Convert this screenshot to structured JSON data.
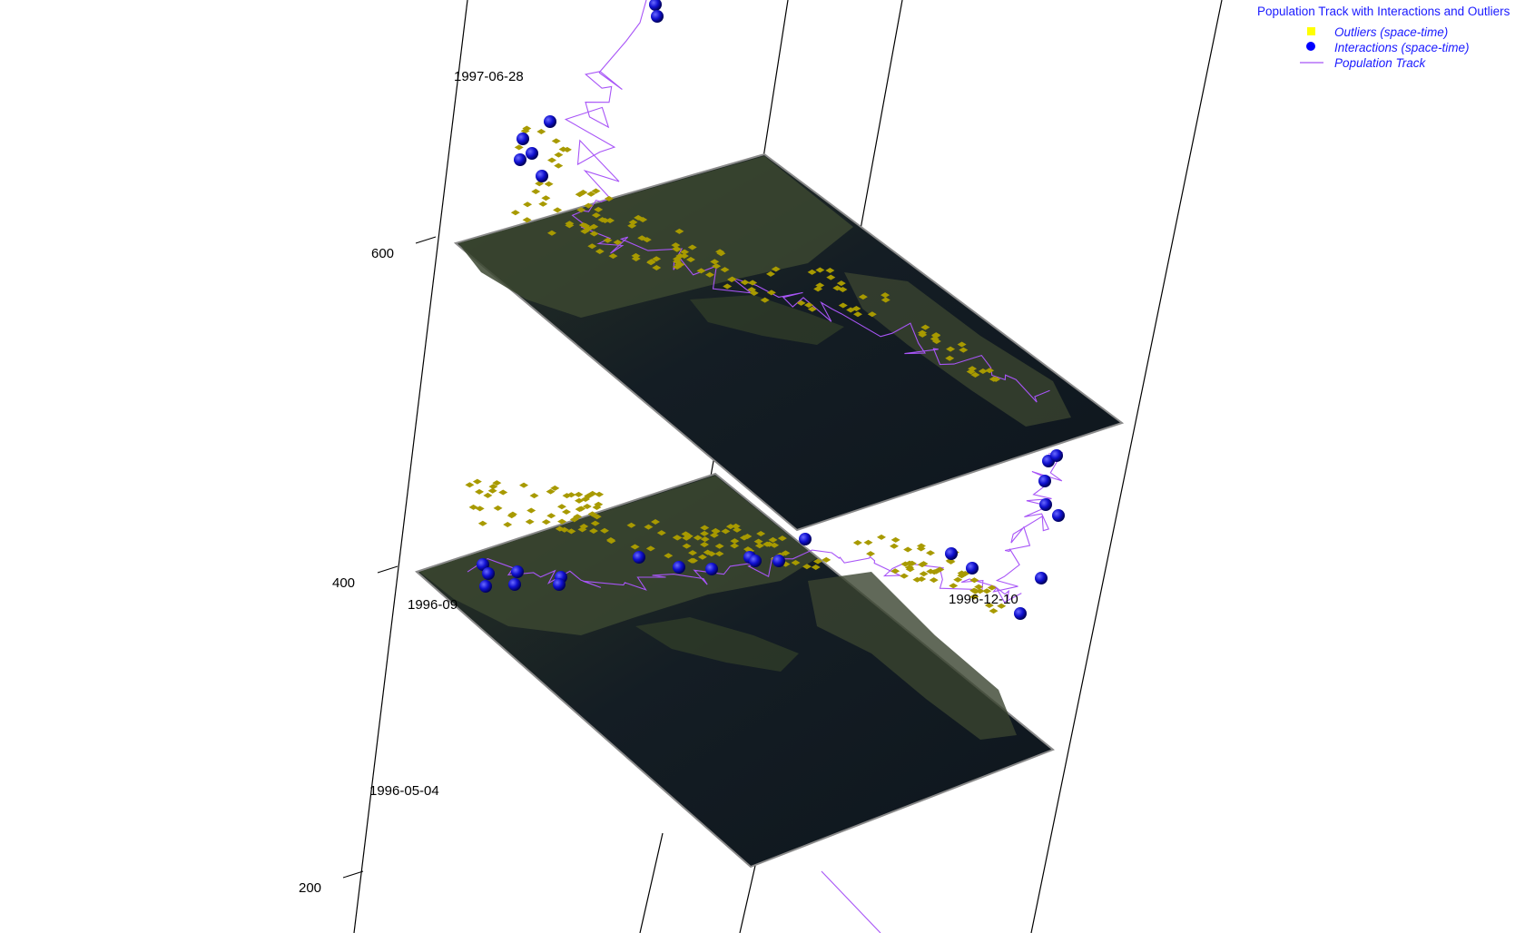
{
  "chart_data": {
    "type": "scatter",
    "title": "Population Track with Interactions and Outliers",
    "legend": {
      "placement": "top-right",
      "items": [
        {
          "label": "Outliers (space-time)",
          "symbol": "square",
          "color": "#ffff00"
        },
        {
          "label": "Interactions (space-time)",
          "symbol": "circle",
          "color": "#0000ff"
        },
        {
          "label": "Population Track",
          "symbol": "line",
          "color": "#a855f7"
        }
      ]
    },
    "z_axis": {
      "ticks": [
        "200",
        "400",
        "600"
      ]
    },
    "date_labels": [
      "1997-06-28",
      "1996-09",
      "1996-12-10",
      "1996-05-04"
    ],
    "colors": {
      "track": "#a855f7",
      "outlier": "#a89a00",
      "interaction": "#0a0ab0",
      "plane": "#111a22",
      "land": "#3d4a2e"
    },
    "series": [
      {
        "name": "Population Track",
        "kind": "line"
      },
      {
        "name": "Interactions (space-time)",
        "kind": "points"
      },
      {
        "name": "Outliers (space-time)",
        "kind": "points"
      }
    ]
  }
}
